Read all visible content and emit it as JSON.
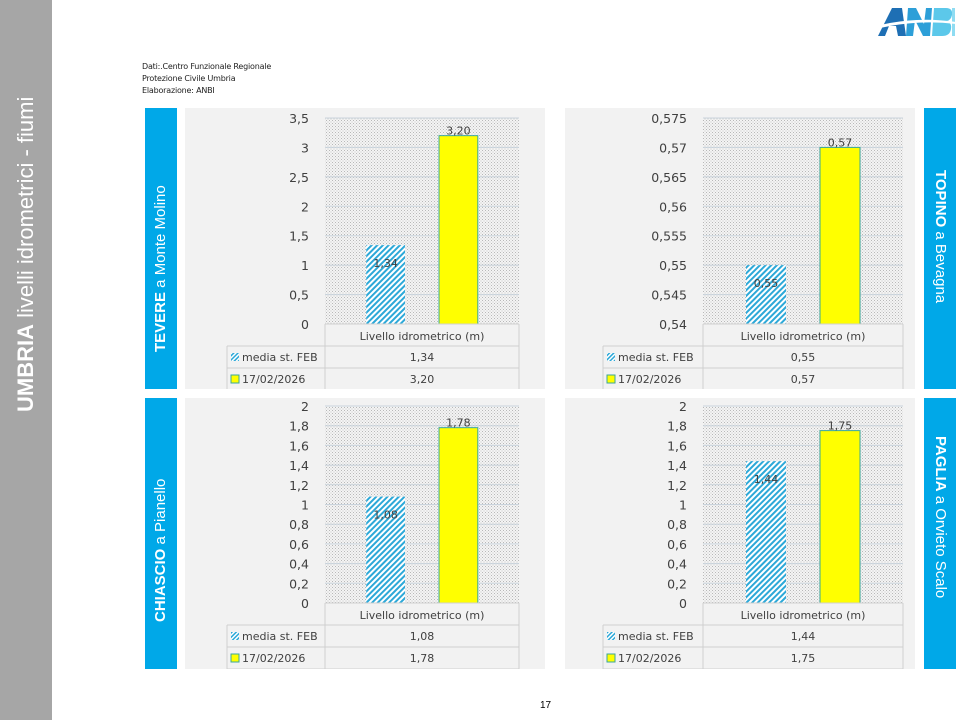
{
  "sidebar": {
    "title_bold": "UMBRIA",
    "title_rest": " livelli idrometrici - fiumi"
  },
  "logo": {
    "text": "ANBI",
    "colors": [
      "#1e6fb4",
      "#2d9fd8",
      "#5cc8ea"
    ]
  },
  "source": {
    "line1": "Dati:.Centro Funzionale Regionale",
    "line2": "Protezione Civile Umbria",
    "line3": "Elaborazione: ANBI"
  },
  "page_number": "17",
  "colors": {
    "label_box": "#00a8e8",
    "series_media": "#2ca8d8",
    "series_date": "#ffff00",
    "series_date_border": "#3aa79a"
  },
  "chart_data": [
    {
      "type": "bar",
      "river": "TEVERE",
      "station": " a Monte Molino",
      "categories": [
        "Livello idrometrico (m)"
      ],
      "series": [
        {
          "name": "media st. FEB",
          "values": [
            1.34
          ],
          "label": "1,34"
        },
        {
          "name": "17/02/2026",
          "values": [
            3.2
          ],
          "label": "3,20"
        }
      ],
      "ylim": [
        0,
        3.5
      ],
      "yticks": [
        "0",
        "0,5",
        "1",
        "1,5",
        "2",
        "2,5",
        "3",
        "3,5"
      ],
      "ytick_values": [
        0,
        0.5,
        1,
        1.5,
        2,
        2.5,
        3,
        3.5
      ],
      "grid": true,
      "legend": "data-table-bottom"
    },
    {
      "type": "bar",
      "river": "TOPINO",
      "station": " a Bevagna",
      "categories": [
        "Livello idrometrico (m)"
      ],
      "series": [
        {
          "name": "media st. FEB",
          "values": [
            0.55
          ],
          "label": "0,55"
        },
        {
          "name": "17/02/2026",
          "values": [
            0.57
          ],
          "label": "0,57"
        }
      ],
      "ylim": [
        0.54,
        0.575
      ],
      "yticks": [
        "0,54",
        "0,545",
        "0,55",
        "0,555",
        "0,56",
        "0,565",
        "0,57",
        "0,575"
      ],
      "ytick_values": [
        0.54,
        0.545,
        0.55,
        0.555,
        0.56,
        0.565,
        0.57,
        0.575
      ],
      "grid": true,
      "legend": "data-table-bottom"
    },
    {
      "type": "bar",
      "river": "CHIASCIO",
      "station": " a Pianello",
      "categories": [
        "Livello idrometrico (m)"
      ],
      "series": [
        {
          "name": "media st. FEB",
          "values": [
            1.08
          ],
          "label": "1,08"
        },
        {
          "name": "17/02/2026",
          "values": [
            1.78
          ],
          "label": "1,78"
        }
      ],
      "ylim": [
        0,
        2
      ],
      "yticks": [
        "0",
        "0,2",
        "0,4",
        "0,6",
        "0,8",
        "1",
        "1,2",
        "1,4",
        "1,6",
        "1,8",
        "2"
      ],
      "ytick_values": [
        0,
        0.2,
        0.4,
        0.6,
        0.8,
        1,
        1.2,
        1.4,
        1.6,
        1.8,
        2
      ],
      "grid": true,
      "legend": "data-table-bottom"
    },
    {
      "type": "bar",
      "river": "PAGLIA",
      "station": " a Orvieto Scalo",
      "categories": [
        "Livello idrometrico (m)"
      ],
      "series": [
        {
          "name": "media st. FEB",
          "values": [
            1.44
          ],
          "label": "1,44"
        },
        {
          "name": "17/02/2026",
          "values": [
            1.75
          ],
          "label": "1,75"
        }
      ],
      "ylim": [
        0,
        2
      ],
      "yticks": [
        "0",
        "0,2",
        "0,4",
        "0,6",
        "0,8",
        "1",
        "1,2",
        "1,4",
        "1,6",
        "1,8",
        "2"
      ],
      "ytick_values": [
        0,
        0.2,
        0.4,
        0.6,
        0.8,
        1,
        1.2,
        1.4,
        1.6,
        1.8,
        2
      ],
      "grid": true,
      "legend": "data-table-bottom"
    }
  ]
}
